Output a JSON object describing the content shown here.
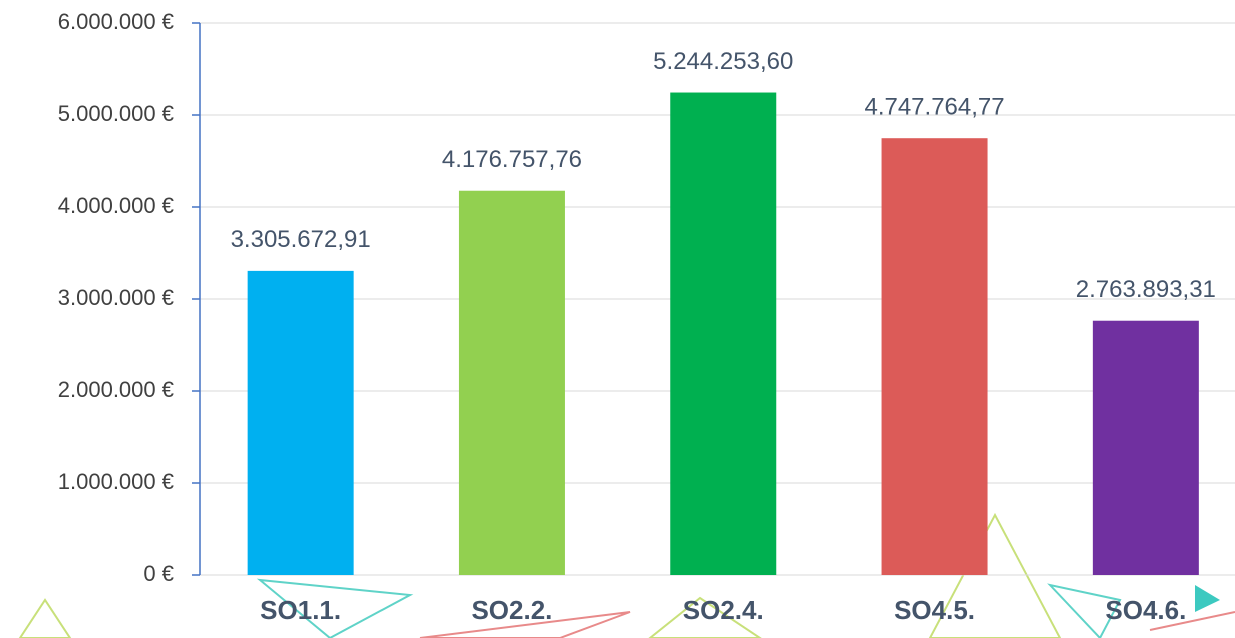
{
  "chart_data": {
    "type": "bar",
    "categories": [
      "SO1.1.",
      "SO2.2.",
      "SO2.4.",
      "SO4.5.",
      "SO4.6."
    ],
    "values": [
      3305672.91,
      4176757.76,
      5244253.6,
      4747764.77,
      2763893.31
    ],
    "value_labels": [
      "3.305.672,91",
      "4.176.757,76",
      "5.244.253,60",
      "4.747.764,77",
      "2.763.893,31"
    ],
    "colors": [
      "#00b0f0",
      "#92d050",
      "#00b050",
      "#dc5b58",
      "#7030a0"
    ],
    "ylim": [
      0,
      6000000
    ],
    "yticks": [
      {
        "value": 0,
        "label": "0 €"
      },
      {
        "value": 1000000,
        "label": "1.000.000 €"
      },
      {
        "value": 2000000,
        "label": "2.000.000 €"
      },
      {
        "value": 3000000,
        "label": "3.000.000 €"
      },
      {
        "value": 4000000,
        "label": "4.000.000 €"
      },
      {
        "value": 5000000,
        "label": "5.000.000 €"
      },
      {
        "value": 6000000,
        "label": "6.000.000 €"
      }
    ],
    "grid": true
  }
}
